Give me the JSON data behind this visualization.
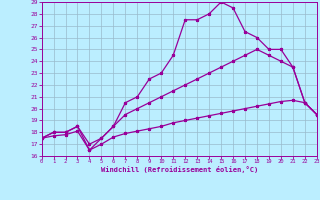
{
  "xlabel": "Windchill (Refroidissement éolien,°C)",
  "xlim": [
    0,
    23
  ],
  "ylim": [
    16,
    29
  ],
  "xticks": [
    0,
    1,
    2,
    3,
    4,
    5,
    6,
    7,
    8,
    9,
    10,
    11,
    12,
    13,
    14,
    15,
    16,
    17,
    18,
    19,
    20,
    21,
    22,
    23
  ],
  "yticks": [
    16,
    17,
    18,
    19,
    20,
    21,
    22,
    23,
    24,
    25,
    26,
    27,
    28,
    29
  ],
  "bg_color": "#bbeeff",
  "line_color": "#990099",
  "grid_color": "#99bbcc",
  "line1_x": [
    0,
    1,
    2,
    3,
    4,
    5,
    6,
    7,
    8,
    9,
    10,
    11,
    12,
    13,
    14,
    15,
    16,
    17,
    18,
    19,
    20,
    21,
    22,
    23
  ],
  "line1_y": [
    17.5,
    18.0,
    18.0,
    18.5,
    17.0,
    17.5,
    18.5,
    20.5,
    21.0,
    22.5,
    23.0,
    24.5,
    27.5,
    27.5,
    28.0,
    29.0,
    28.5,
    26.5,
    26.0,
    25.0,
    25.0,
    23.5,
    20.5,
    19.5
  ],
  "line2_x": [
    0,
    1,
    2,
    3,
    4,
    5,
    6,
    7,
    8,
    9,
    10,
    11,
    12,
    13,
    14,
    15,
    16,
    17,
    18,
    19,
    20,
    21,
    22,
    23
  ],
  "line2_y": [
    17.5,
    18.0,
    18.0,
    18.5,
    16.5,
    17.5,
    18.5,
    19.5,
    20.0,
    20.5,
    21.0,
    21.5,
    22.0,
    22.5,
    23.0,
    23.5,
    24.0,
    24.5,
    25.0,
    24.5,
    24.0,
    23.5,
    20.5,
    19.5
  ],
  "line3_x": [
    0,
    1,
    2,
    3,
    4,
    5,
    6,
    7,
    8,
    9,
    10,
    11,
    12,
    13,
    14,
    15,
    16,
    17,
    18,
    19,
    20,
    21,
    22,
    23
  ],
  "line3_y": [
    17.5,
    17.7,
    17.8,
    18.1,
    16.5,
    17.0,
    17.6,
    17.9,
    18.1,
    18.3,
    18.5,
    18.8,
    19.0,
    19.2,
    19.4,
    19.6,
    19.8,
    20.0,
    20.2,
    20.4,
    20.6,
    20.7,
    20.5,
    19.5
  ]
}
